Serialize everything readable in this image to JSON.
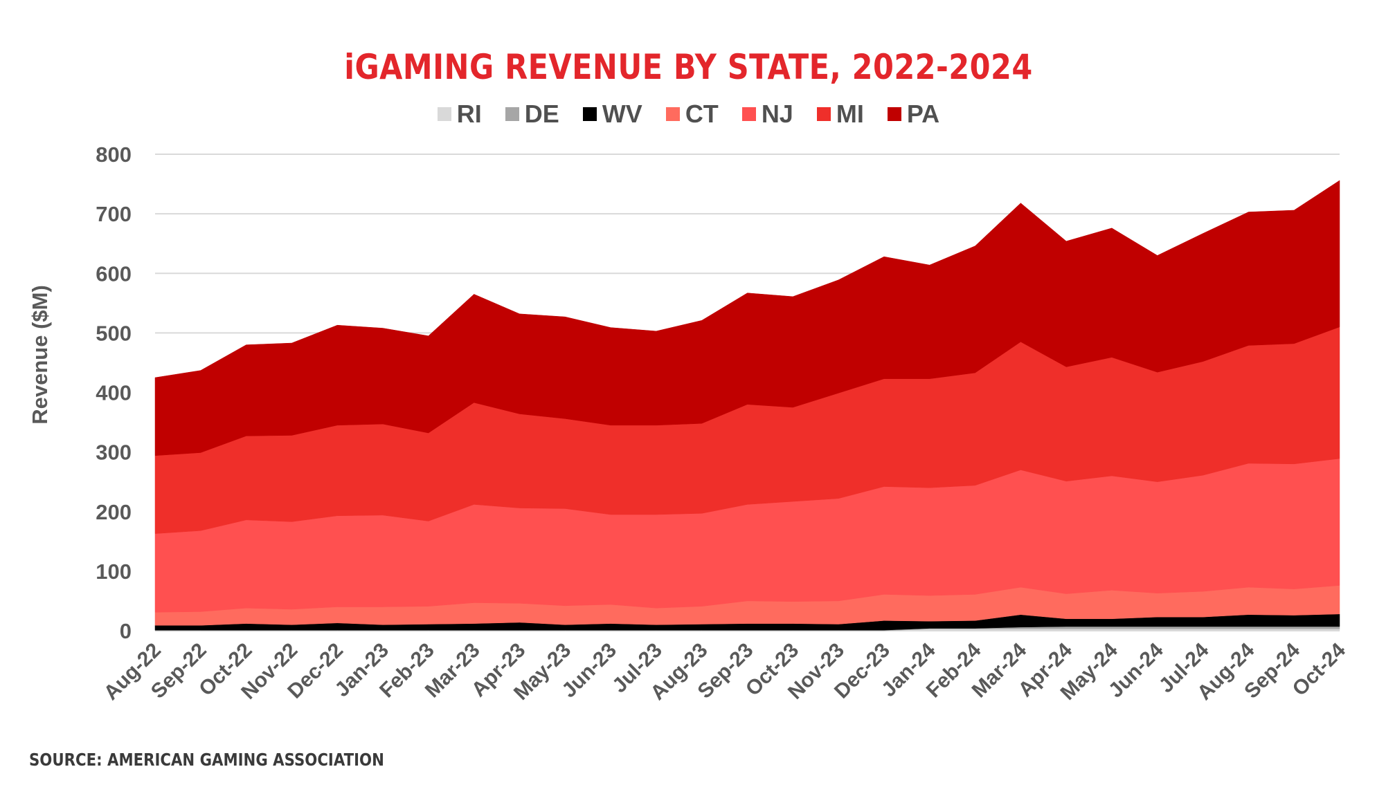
{
  "colors": {
    "RI": "#d9d9d9",
    "DE": "#a6a6a6",
    "WV": "#000000",
    "CT": "#ff6b5e",
    "NJ": "#ff5050",
    "MI": "#ef2f2a",
    "PA": "#c00000",
    "grid": "#d9d9d9",
    "title": "#e3262b"
  },
  "source": "SOURCE: AMERICAN GAMING ASSOCIATION",
  "chart_data": {
    "type": "area",
    "stacked": true,
    "title": "iGAMING REVENUE BY STATE, 2022-2024",
    "xlabel": "",
    "ylabel": "Revenue ($M)",
    "ylim": [
      0,
      800
    ],
    "yticks": [
      0,
      100,
      200,
      300,
      400,
      500,
      600,
      700,
      800
    ],
    "grid": true,
    "legend_position": "top",
    "categories": [
      "Aug-22",
      "Sep-22",
      "Oct-22",
      "Nov-22",
      "Dec-22",
      "Jan-23",
      "Feb-23",
      "Mar-23",
      "Apr-23",
      "May-23",
      "Jun-23",
      "Jul-23",
      "Aug-23",
      "Sep-23",
      "Oct-23",
      "Nov-23",
      "Dec-23",
      "Jan-24",
      "Feb-24",
      "Mar-24",
      "Apr-24",
      "May-24",
      "Jun-24",
      "Jul-24",
      "Aug-24",
      "Sep-24",
      "Oct-24"
    ],
    "series": [
      {
        "name": "RI",
        "values": [
          0,
          0,
          0,
          0,
          0,
          0,
          0,
          0,
          0,
          0,
          0,
          0,
          0,
          0,
          0,
          0,
          0,
          3,
          3,
          3,
          3,
          3,
          3,
          3,
          3,
          3,
          3
        ]
      },
      {
        "name": "DE",
        "values": [
          1,
          1,
          1,
          1,
          1,
          1,
          1,
          1,
          1,
          1,
          1,
          1,
          1,
          1,
          1,
          1,
          1,
          1,
          1,
          3,
          4,
          4,
          4,
          4,
          4,
          4,
          4
        ]
      },
      {
        "name": "WV",
        "values": [
          8,
          8,
          11,
          9,
          12,
          9,
          10,
          11,
          13,
          9,
          11,
          9,
          10,
          11,
          11,
          10,
          16,
          12,
          13,
          21,
          13,
          13,
          16,
          16,
          20,
          19,
          21
        ]
      },
      {
        "name": "CT",
        "values": [
          22,
          23,
          26,
          26,
          27,
          30,
          30,
          35,
          32,
          32,
          32,
          28,
          30,
          38,
          37,
          39,
          44,
          43,
          44,
          46,
          42,
          48,
          40,
          43,
          46,
          44,
          48
        ]
      },
      {
        "name": "NJ",
        "values": [
          132,
          136,
          148,
          147,
          153,
          154,
          143,
          165,
          160,
          163,
          151,
          157,
          156,
          162,
          168,
          172,
          181,
          181,
          183,
          197,
          189,
          192,
          187,
          195,
          208,
          210,
          213
        ]
      },
      {
        "name": "MI",
        "values": [
          131,
          131,
          141,
          145,
          152,
          153,
          148,
          171,
          158,
          151,
          150,
          150,
          151,
          168,
          158,
          177,
          181,
          183,
          189,
          215,
          192,
          199,
          184,
          191,
          198,
          202,
          221
        ]
      },
      {
        "name": "PA",
        "values": [
          131,
          138,
          153,
          155,
          168,
          161,
          163,
          182,
          168,
          171,
          164,
          158,
          173,
          187,
          186,
          190,
          205,
          191,
          213,
          233,
          211,
          217,
          196,
          215,
          224,
          224,
          246
        ]
      }
    ]
  }
}
